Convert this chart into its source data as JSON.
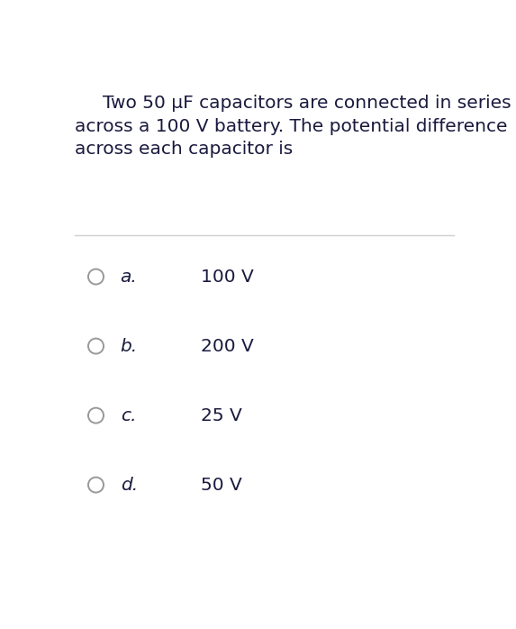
{
  "background_color": "#ffffff",
  "question_line1": "Two 50 μF capacitors are connected in series",
  "question_line2": "across a 100 V battery. The potential difference",
  "question_line3": "across each capacitor is",
  "question_indent_line1": true,
  "options": [
    {
      "label": "a.",
      "answer": "100 V"
    },
    {
      "label": "b.",
      "answer": "200 V"
    },
    {
      "label": "c.",
      "answer": "25 V"
    },
    {
      "label": "d.",
      "answer": "50 V"
    }
  ],
  "text_color": "#1a1a3e",
  "circle_edgecolor": "#999999",
  "divider_color": "#d0d0d0",
  "question_fontsize": 14.5,
  "option_fontsize": 14.5,
  "answer_fontsize": 14.5
}
